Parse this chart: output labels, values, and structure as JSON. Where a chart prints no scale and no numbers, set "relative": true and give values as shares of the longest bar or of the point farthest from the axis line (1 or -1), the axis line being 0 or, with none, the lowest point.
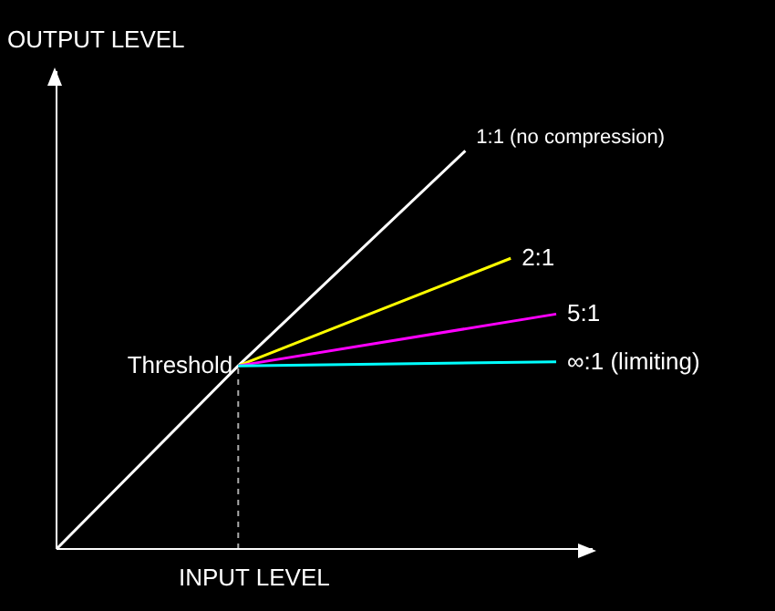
{
  "chart_data": {
    "type": "line",
    "relative": true,
    "xlabel": "INPUT LEVEL",
    "ylabel": "OUTPUT LEVEL",
    "marker": "none",
    "line_style": "solid",
    "categories": [
      null,
      null,
      null,
      null,
      null,
      null,
      null,
      null,
      null,
      null,
      null,
      null
    ],
    "series": [
      {
        "name": "1:1 (no compression)",
        "color": "#ffffff",
        "values": [
          0,
          null,
          null,
          null,
          0.46,
          null,
          null,
          null,
          null,
          1,
          null,
          null
        ]
      },
      {
        "name": "2:1",
        "color": "#ffff00",
        "values": [
          null,
          null,
          null,
          null,
          0.46,
          null,
          null,
          null,
          null,
          null,
          0.73,
          null
        ]
      },
      {
        "name": "5:1",
        "color": "#ff00ff",
        "values": [
          null,
          null,
          null,
          null,
          0.46,
          null,
          null,
          null,
          null,
          null,
          null,
          0.59
        ]
      },
      {
        "name": "∞:1 (limiting)",
        "color": "#00ffff",
        "values": [
          null,
          null,
          null,
          null,
          0.46,
          null,
          null,
          null,
          null,
          null,
          null,
          0.47
        ]
      }
    ],
    "annotations": [
      "Threshold"
    ]
  }
}
